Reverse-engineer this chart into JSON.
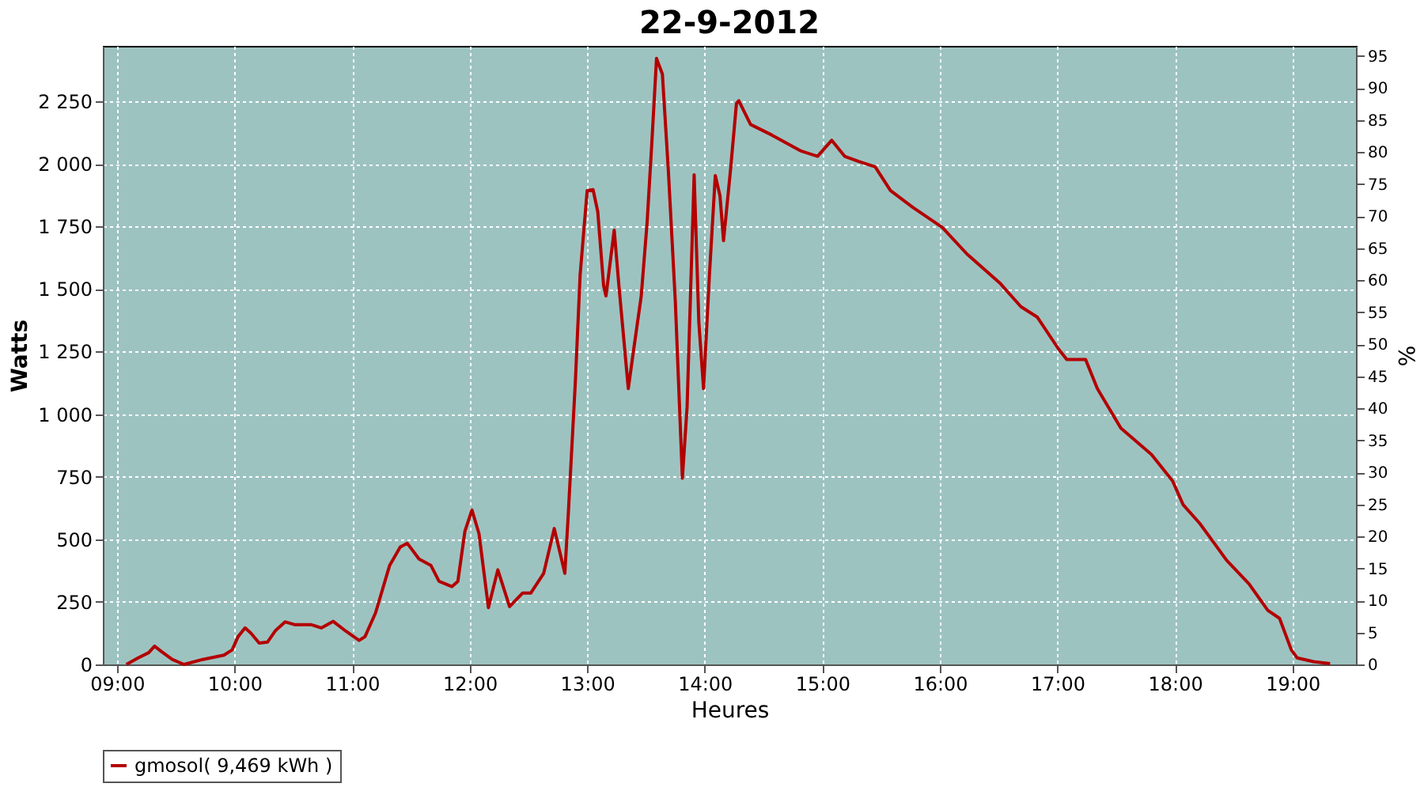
{
  "chart_data": {
    "type": "line",
    "title": "22-9-2012",
    "xlabel": "Heures",
    "ylabel": "Watts",
    "y2label": "%",
    "xlim": [
      8.88,
      19.54
    ],
    "ylim": [
      0,
      2471
    ],
    "y2lim": [
      0,
      96.6
    ],
    "xticks": [
      {
        "value": 9,
        "label": "09:00"
      },
      {
        "value": 10,
        "label": "10:00"
      },
      {
        "value": 11,
        "label": "11:00"
      },
      {
        "value": 12,
        "label": "12:00"
      },
      {
        "value": 13,
        "label": "13:00"
      },
      {
        "value": 14,
        "label": "14:00"
      },
      {
        "value": 15,
        "label": "15:00"
      },
      {
        "value": 16,
        "label": "16:00"
      },
      {
        "value": 17,
        "label": "17:00"
      },
      {
        "value": 18,
        "label": "18:00"
      },
      {
        "value": 19,
        "label": "19:00"
      }
    ],
    "yticks": [
      0,
      250,
      500,
      750,
      {
        "value": 1000,
        "label": "1 000"
      },
      {
        "value": 1250,
        "label": "1 250"
      },
      {
        "value": 1500,
        "label": "1 500"
      },
      {
        "value": 1750,
        "label": "1 750"
      },
      {
        "value": 2000,
        "label": "2 000"
      },
      {
        "value": 2250,
        "label": "2 250"
      }
    ],
    "y2ticks": [
      0,
      5,
      10,
      15,
      20,
      25,
      30,
      35,
      40,
      45,
      50,
      55,
      60,
      65,
      70,
      75,
      80,
      85,
      90,
      95
    ],
    "grid": true,
    "legend": "bottom",
    "marker": "none",
    "line_style": "solid",
    "series": [
      {
        "name": "gmosol( 9,469 kWh )",
        "color": "#b30000",
        "x": [
          9.08,
          9.18,
          9.27,
          9.32,
          9.38,
          9.47,
          9.57,
          9.73,
          9.91,
          9.98,
          10.03,
          10.09,
          10.14,
          10.21,
          10.28,
          10.35,
          10.43,
          10.51,
          10.65,
          10.74,
          10.84,
          10.95,
          11.06,
          11.11,
          11.2,
          11.32,
          11.41,
          11.47,
          11.57,
          11.67,
          11.74,
          11.85,
          11.9,
          11.96,
          12.02,
          12.08,
          12.16,
          12.24,
          12.34,
          12.45,
          12.52,
          12.63,
          12.72,
          12.81,
          12.84,
          12.9,
          12.94,
          13.0,
          13.05,
          13.09,
          13.14,
          13.16,
          13.23,
          13.27,
          13.35,
          13.39,
          13.46,
          13.51,
          13.55,
          13.59,
          13.64,
          13.69,
          13.75,
          13.81,
          13.85,
          13.91,
          13.95,
          13.99,
          14.04,
          14.09,
          14.13,
          14.16,
          14.22,
          14.27,
          14.29,
          14.39,
          14.57,
          14.82,
          14.96,
          15.08,
          15.19,
          15.31,
          15.45,
          15.58,
          15.77,
          16.02,
          16.23,
          16.51,
          16.69,
          16.83,
          17.01,
          17.08,
          17.24,
          17.34,
          17.54,
          17.8,
          17.98,
          18.07,
          18.21,
          18.44,
          18.63,
          18.79,
          18.89,
          18.99,
          19.04,
          19.18,
          19.32
        ],
        "values": [
          0,
          26,
          47,
          73,
          51,
          20,
          0,
          20,
          37,
          58,
          111,
          146,
          125,
          85,
          89,
          136,
          170,
          159,
          159,
          146,
          172,
          132,
          96,
          111,
          206,
          396,
          469,
          484,
          421,
          396,
          332,
          311,
          332,
          532,
          617,
          522,
          227,
          378,
          231,
          285,
          285,
          364,
          543,
          364,
          606,
          1134,
          1556,
          1893,
          1897,
          1809,
          1513,
          1472,
          1735,
          1513,
          1102,
          1239,
          1472,
          1766,
          2083,
          2421,
          2358,
          1978,
          1450,
          744,
          1028,
          1956,
          1366,
          1102,
          1556,
          1953,
          1872,
          1693,
          1978,
          2241,
          2252,
          2157,
          2115,
          2051,
          2030,
          2094,
          2030,
          2009,
          1988,
          1893,
          1826,
          1746,
          1640,
          1524,
          1429,
          1387,
          1260,
          1218,
          1218,
          1102,
          944,
          839,
          733,
          638,
          564,
          416,
          322,
          216,
          184,
          58,
          26,
          11,
          3
        ]
      }
    ]
  }
}
